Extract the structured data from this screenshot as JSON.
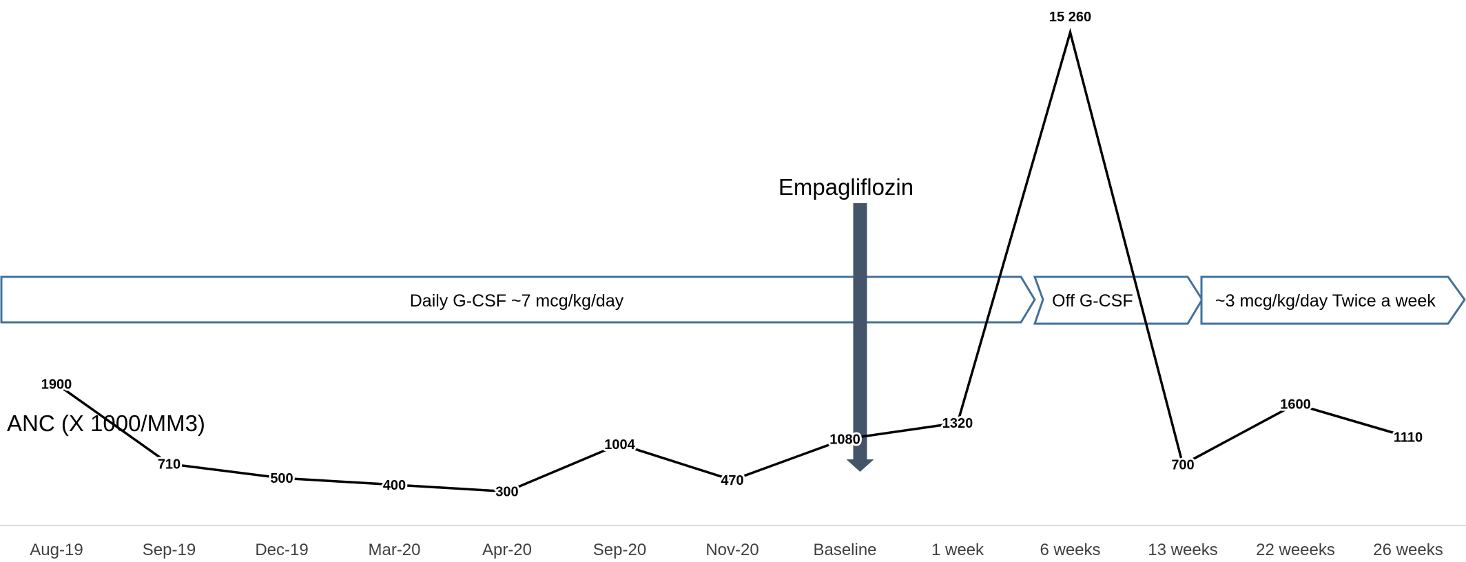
{
  "chart_data": {
    "type": "line",
    "title": "",
    "xlabel": "",
    "ylabel": "ANC (X 1000/MM3)",
    "categories": [
      "Aug-19",
      "Sep-19",
      "Dec-19",
      "Mar-20",
      "Apr-20",
      "Sep-20",
      "Nov-20",
      "Baseline",
      "1 week",
      "6 weeks",
      "13 weeks",
      "22 weeeks",
      "26 weeks"
    ],
    "series": [
      {
        "name": "",
        "values": [
          1900,
          710,
          500,
          400,
          300,
          1004,
          470,
          1080,
          1320,
          15260,
          700,
          1600,
          1110
        ],
        "data_labels": [
          "1900",
          "710",
          "500",
          "400",
          "300",
          "1004",
          "470",
          "1080",
          "1320",
          "15 260",
          "700",
          "1600",
          "1110"
        ]
      }
    ],
    "annotations": {
      "drug": {
        "label": "Empagliflozin",
        "at_category": "Baseline"
      },
      "phases": [
        {
          "label": "Daily G-CSF ~7 mcg/kg/day",
          "from": "Aug-19",
          "to": "1 week"
        },
        {
          "label": "Off G-CSF",
          "from": "6 weeks",
          "to": "13 weeks"
        },
        {
          "label": "~3 mcg/kg/day Twice a week",
          "from": "13 weeks",
          "to": "26 weeks"
        }
      ]
    },
    "colors": {
      "line": "#000000",
      "phase_border": "#41719c",
      "arrow": "#44546a",
      "axis": "#d9d9d9"
    },
    "grid": false,
    "legend": "none"
  }
}
